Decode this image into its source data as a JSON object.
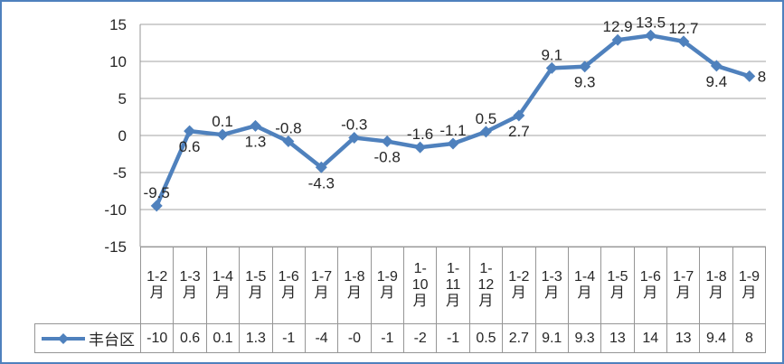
{
  "frame": {
    "border_color": "#4F81BD",
    "background_color": "#FFFFFF"
  },
  "chart_data": {
    "type": "line",
    "title": "",
    "xlabel": "",
    "ylabel": "",
    "ylim": [
      -15,
      15
    ],
    "ytick_step": 5,
    "ytick_labels": [
      "15",
      "10",
      "5",
      "0",
      "-5",
      "-10",
      "-15"
    ],
    "grid": true,
    "legend_position": "bottom-left-of-data-table",
    "gridline_color": "#A3A3A3",
    "axis_line_color": "#969696",
    "table_border_color": "#969696",
    "text_color": "#262626",
    "categories": [
      "1-2月",
      "1-3月",
      "1-4月",
      "1-5月",
      "1-6月",
      "1-7月",
      "1-8月",
      "1-9月",
      "1-10月",
      "1-11月",
      "1-12月",
      "1-2月",
      "1-3月",
      "1-4月",
      "1-5月",
      "1-6月",
      "1-7月",
      "1-8月",
      "1-9月"
    ],
    "series": [
      {
        "name": "丰台区",
        "color": "#4F81BD",
        "marker": "diamond",
        "values": [
          -9.5,
          0.6,
          0.1,
          1.3,
          -0.8,
          -4.3,
          -0.3,
          -0.8,
          -1.6,
          -1.1,
          0.5,
          2.7,
          9.1,
          9.3,
          12.9,
          13.5,
          12.7,
          9.4,
          8
        ],
        "data_labels": [
          "-9.5",
          "0.6",
          "0.1",
          "1.3",
          "-0.8",
          "-4.3",
          "-0.3",
          "-0.8",
          "-1.6",
          "-1.1",
          "0.5",
          "2.7",
          "9.1",
          "9.3",
          "12.9",
          "13.5",
          "12.7",
          "9.4",
          "8"
        ],
        "label_positions": [
          "above",
          "below",
          "above",
          "below",
          "above",
          "below",
          "above",
          "below",
          "above",
          "above",
          "above",
          "below",
          "above",
          "below",
          "above",
          "above",
          "above",
          "below",
          "right"
        ],
        "table_values": [
          "-10",
          "0.6",
          "0.1",
          "1.3",
          "-1",
          "-4",
          "-0",
          "-1",
          "-2",
          "-1",
          "0.5",
          "2.7",
          "9.1",
          "9.3",
          "13",
          "14",
          "13",
          "9.4",
          "8"
        ]
      }
    ]
  }
}
